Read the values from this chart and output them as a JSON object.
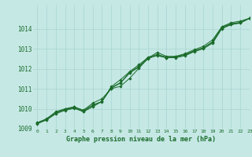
{
  "xlabel": "Graphe pression niveau de la mer (hPa)",
  "xlim": [
    -0.5,
    23
  ],
  "ylim": [
    1009.0,
    1015.2
  ],
  "yticks": [
    1009,
    1010,
    1011,
    1012,
    1013,
    1014
  ],
  "xticks": [
    0,
    1,
    2,
    3,
    4,
    5,
    6,
    7,
    8,
    9,
    10,
    11,
    12,
    13,
    14,
    15,
    16,
    17,
    18,
    19,
    20,
    21,
    22,
    23
  ],
  "background_color": "#c5e8e5",
  "grid_color": "#a8d4d0",
  "line_color": "#1a6b2a",
  "marker": "D",
  "markersize": 1.8,
  "linewidth": 0.7,
  "series": [
    [
      1009.3,
      1009.5,
      1009.85,
      1010.0,
      1010.1,
      1009.9,
      1010.2,
      1010.35,
      1011.1,
      1011.45,
      1011.85,
      1012.2,
      1012.55,
      1012.65,
      1012.55,
      1012.6,
      1012.72,
      1012.9,
      1013.05,
      1013.35,
      1014.1,
      1014.3,
      1014.38,
      1014.52
    ],
    [
      1009.3,
      1009.48,
      1009.82,
      1009.97,
      1010.08,
      1009.93,
      1010.28,
      1010.5,
      1011.0,
      1011.12,
      1011.52,
      1012.02,
      1012.52,
      1012.82,
      1012.62,
      1012.62,
      1012.75,
      1012.95,
      1013.12,
      1013.45,
      1014.08,
      1014.25,
      1014.32,
      1014.52
    ],
    [
      1009.28,
      1009.46,
      1009.78,
      1009.95,
      1010.04,
      1009.88,
      1010.14,
      1010.38,
      1011.06,
      1011.3,
      1011.82,
      1012.12,
      1012.58,
      1012.72,
      1012.58,
      1012.58,
      1012.68,
      1012.88,
      1013.04,
      1013.32,
      1014.04,
      1014.22,
      1014.3,
      1014.52
    ],
    [
      1009.25,
      1009.44,
      1009.75,
      1009.92,
      1010.02,
      1009.85,
      1010.1,
      1010.36,
      1011.02,
      1011.28,
      1011.78,
      1012.08,
      1012.5,
      1012.68,
      1012.55,
      1012.55,
      1012.65,
      1012.85,
      1013.0,
      1013.28,
      1014.0,
      1014.2,
      1014.28,
      1014.52
    ]
  ]
}
